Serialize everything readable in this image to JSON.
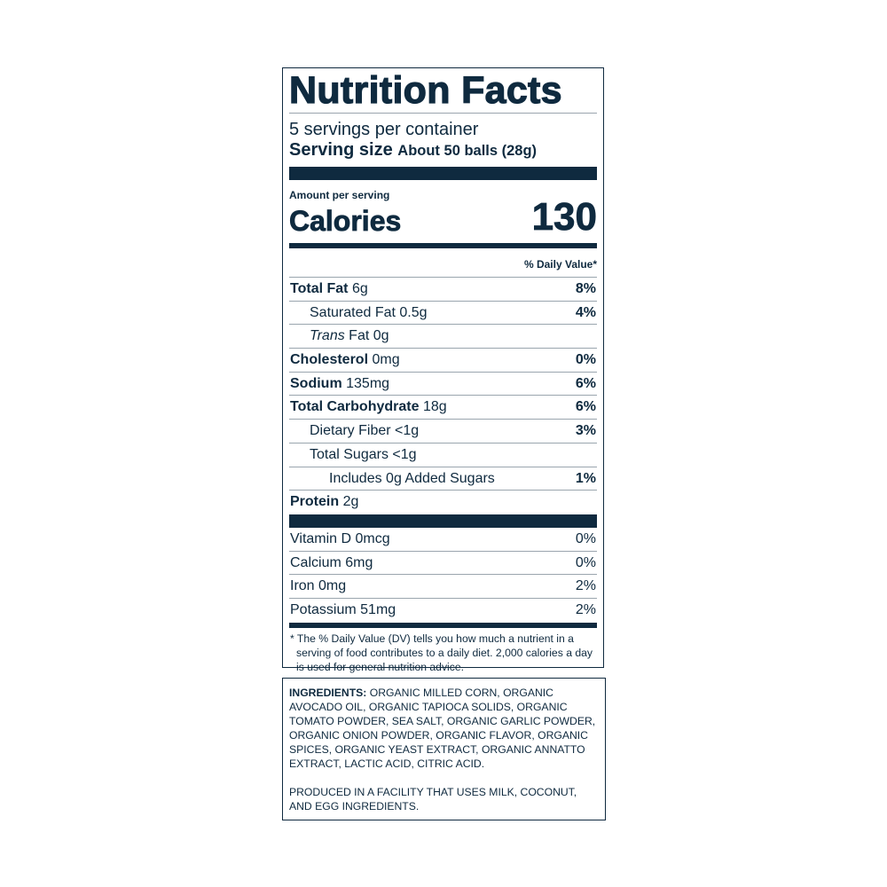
{
  "title": "Nutrition Facts",
  "servings_per_container": "5 servings per container",
  "serving_size_label": "Serving size",
  "serving_size_value": "About 50 balls (28g)",
  "amount_per_serving": "Amount per serving",
  "calories_label": "Calories",
  "calories_value": "130",
  "daily_value_header": "% Daily Value*",
  "nutrients": [
    {
      "name": "Total Fat",
      "amount": "6g",
      "dv": "8%"
    },
    {
      "name": "Saturated Fat",
      "amount": "0.5g",
      "dv": "4%"
    },
    {
      "name": "Trans",
      "name_rest": "Fat",
      "amount": "0g",
      "dv": ""
    },
    {
      "name": "Cholesterol",
      "amount": "0mg",
      "dv": "0%"
    },
    {
      "name": "Sodium",
      "amount": "135mg",
      "dv": "6%"
    },
    {
      "name": "Total Carbohydrate",
      "amount": "18g",
      "dv": "6%"
    },
    {
      "name": "Dietary Fiber",
      "amount": "<1g",
      "dv": "3%"
    },
    {
      "name": "Total Sugars",
      "amount": "<1g",
      "dv": ""
    },
    {
      "name": "Includes 0g Added Sugars",
      "amount": "",
      "dv": "1%"
    },
    {
      "name": "Protein",
      "amount": "2g",
      "dv": ""
    }
  ],
  "vitamins": [
    {
      "name": "Vitamin D 0mcg",
      "dv": "0%"
    },
    {
      "name": "Calcium 6mg",
      "dv": "0%"
    },
    {
      "name": "Iron 0mg",
      "dv": "2%"
    },
    {
      "name": "Potassium 51mg",
      "dv": "2%"
    }
  ],
  "footnote": "* The % Daily Value (DV) tells you how much a nutrient in a serving of food contributes to a daily diet. 2,000 calories a day is used for general nutrition advice.",
  "ingredients_label": "INGREDIENTS:",
  "ingredients_text": "ORGANIC MILLED CORN, ORGANIC AVOCADO OIL, ORGANIC TAPIOCA SOLIDS, ORGANIC TOMATO POWDER, SEA SALT, ORGANIC GARLIC POWDER, ORGANIC ONION POWDER, ORGANIC FLAVOR, ORGANIC SPICES, ORGANIC YEAST EXTRACT, ORGANIC ANNATTO EXTRACT, LACTIC ACID, CITRIC ACID.",
  "allergen_statement": "PRODUCED IN A FACILITY THAT USES MILK, COCONUT, AND EGG INGREDIENTS.",
  "colors": {
    "ink": "#0f2a3f",
    "rule": "#9aa5ae"
  }
}
